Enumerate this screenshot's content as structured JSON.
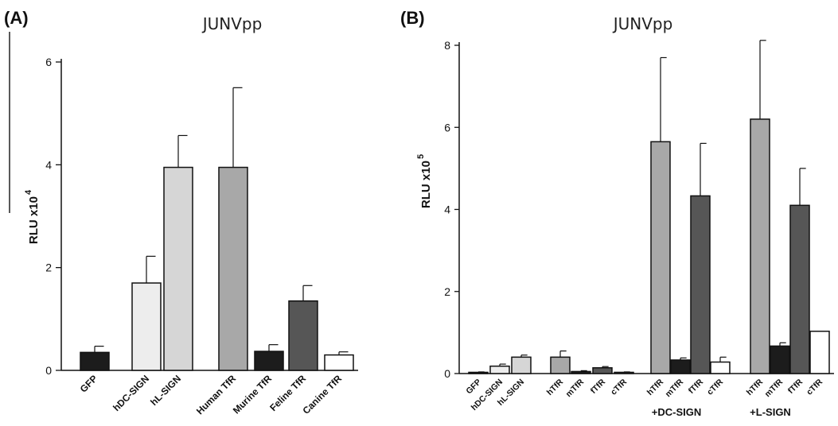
{
  "chart_data": [
    {
      "panel": "(A)",
      "type": "bar",
      "title": "JUNVpp",
      "ylabel_base": "RLU x10",
      "ylabel_exp": "4",
      "ylim": [
        0,
        6
      ],
      "yticks": [
        "0",
        "2",
        "4",
        "6"
      ],
      "categories": [
        "GFP",
        "hDC-SIGN",
        "hL-SIGN",
        "Human TfR",
        "Murine TfR",
        "Feline TfR",
        "Canine TfR"
      ],
      "values": [
        0.35,
        1.7,
        3.95,
        3.95,
        0.37,
        1.35,
        0.3
      ],
      "errors": [
        0.12,
        0.52,
        0.62,
        1.55,
        0.13,
        0.3,
        0.06
      ],
      "colors": [
        "#1c1c1c",
        "#ededed",
        "#d6d6d6",
        "#a8a8a8",
        "#1c1c1c",
        "#565656",
        "#ffffff"
      ]
    },
    {
      "panel": "(B)",
      "type": "bar",
      "title": "JUNVpp",
      "ylabel_base": "RLU x10",
      "ylabel_exp": "5",
      "ylim": [
        0,
        8
      ],
      "yticks": [
        "0",
        "2",
        "4",
        "6",
        "8"
      ],
      "categories": [
        "GFP",
        "hDC-SIGN",
        "hL-SIGN",
        "hTfR",
        "mTfR",
        "fTfR",
        "cTfR",
        "hTfR",
        "mTfR",
        "fTfR",
        "cTfR",
        "hTfR",
        "mTfR",
        "fTfR",
        "cTfR"
      ],
      "values": [
        0.03,
        0.18,
        0.4,
        0.4,
        0.05,
        0.14,
        0.03,
        5.65,
        0.33,
        4.33,
        0.28,
        6.2,
        0.67,
        4.1,
        1.03
      ],
      "errors": [
        0.01,
        0.05,
        0.05,
        0.15,
        0.02,
        0.03,
        0.01,
        2.05,
        0.05,
        1.28,
        0.12,
        1.92,
        0.08,
        0.9,
        0.0
      ],
      "colors": [
        "#1c1c1c",
        "#ededed",
        "#d6d6d6",
        "#a8a8a8",
        "#1c1c1c",
        "#565656",
        "#ffffff",
        "#a8a8a8",
        "#1c1c1c",
        "#565656",
        "#ffffff",
        "#a8a8a8",
        "#1c1c1c",
        "#565656",
        "#ffffff"
      ],
      "group_labels": [
        "+DC-SIGN",
        "+L-SIGN"
      ]
    }
  ]
}
